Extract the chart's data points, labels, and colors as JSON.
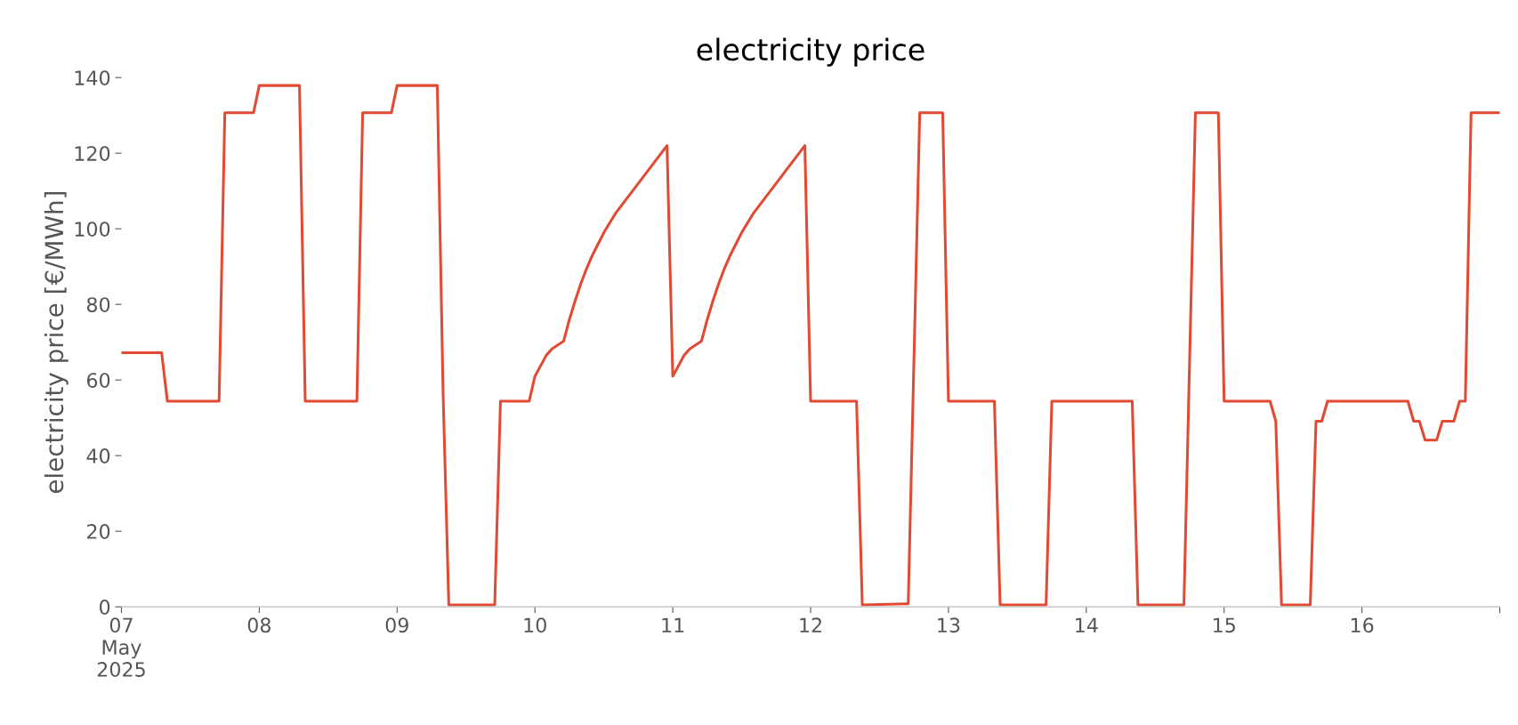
{
  "chart_data": {
    "type": "line",
    "title": "electricity price",
    "ylabel": "electricity price [€/MWh]",
    "series": [
      {
        "color": "#e24a33",
        "x": [
          "2025-05-07T00:00",
          "2025-05-07T07:00",
          "2025-05-07T08:00",
          "2025-05-07T17:00",
          "2025-05-07T18:00",
          "2025-05-07T23:00",
          "2025-05-08T00:00",
          "2025-05-08T07:00",
          "2025-05-08T08:00",
          "2025-05-08T17:00",
          "2025-05-08T18:00",
          "2025-05-08T23:00",
          "2025-05-09T00:00",
          "2025-05-09T07:00",
          "2025-05-09T08:00",
          "2025-05-09T09:00",
          "2025-05-09T17:00",
          "2025-05-09T18:00",
          "2025-05-09T23:00",
          "2025-05-10T00:00",
          "2025-05-10T02:00",
          "2025-05-10T03:00",
          "2025-05-10T05:00",
          "2025-05-10T06:00",
          "2025-05-10T07:00",
          "2025-05-10T08:00",
          "2025-05-10T09:00",
          "2025-05-10T10:00",
          "2025-05-10T11:00",
          "2025-05-10T12:00",
          "2025-05-10T13:00",
          "2025-05-10T14:00",
          "2025-05-10T15:00",
          "2025-05-10T16:00",
          "2025-05-10T17:00",
          "2025-05-10T18:00",
          "2025-05-10T19:00",
          "2025-05-10T20:00",
          "2025-05-10T21:00",
          "2025-05-10T22:00",
          "2025-05-10T23:00",
          "2025-05-11T00:00",
          "2025-05-11T02:00",
          "2025-05-11T03:00",
          "2025-05-11T05:00",
          "2025-05-11T06:00",
          "2025-05-11T07:00",
          "2025-05-11T08:00",
          "2025-05-11T09:00",
          "2025-05-11T10:00",
          "2025-05-11T11:00",
          "2025-05-11T12:00",
          "2025-05-11T13:00",
          "2025-05-11T14:00",
          "2025-05-11T15:00",
          "2025-05-11T16:00",
          "2025-05-11T17:00",
          "2025-05-11T18:00",
          "2025-05-11T19:00",
          "2025-05-11T20:00",
          "2025-05-11T21:00",
          "2025-05-11T22:00",
          "2025-05-11T23:00",
          "2025-05-12T00:00",
          "2025-05-12T08:00",
          "2025-05-12T09:00",
          "2025-05-12T17:00",
          "2025-05-12T19:00",
          "2025-05-12T23:00",
          "2025-05-13T00:00",
          "2025-05-13T08:00",
          "2025-05-13T09:00",
          "2025-05-13T17:00",
          "2025-05-13T18:00",
          "2025-05-14T08:00",
          "2025-05-14T09:00",
          "2025-05-14T17:00",
          "2025-05-14T19:00",
          "2025-05-14T23:00",
          "2025-05-15T00:00",
          "2025-05-15T08:00",
          "2025-05-15T09:00",
          "2025-05-15T10:00",
          "2025-05-15T15:00",
          "2025-05-15T16:00",
          "2025-05-15T17:00",
          "2025-05-15T18:00",
          "2025-05-16T08:00",
          "2025-05-16T09:00",
          "2025-05-16T10:00",
          "2025-05-16T11:00",
          "2025-05-16T13:00",
          "2025-05-16T14:00",
          "2025-05-16T16:00",
          "2025-05-16T17:00",
          "2025-05-16T18:00",
          "2025-05-16T19:00",
          "2025-05-17T00:00"
        ],
        "values": [
          67.2,
          67.2,
          54.4,
          54.4,
          130.7,
          130.7,
          137.9,
          137.9,
          54.4,
          54.4,
          130.7,
          130.7,
          137.9,
          137.9,
          57,
          0.5,
          0.5,
          54.4,
          54.4,
          61,
          66.6,
          68.3,
          70.3,
          76,
          81,
          85.5,
          89.5,
          93,
          96,
          99,
          101.5,
          104,
          106,
          108,
          110,
          112,
          114,
          116,
          118,
          120,
          122,
          61,
          66.6,
          68.3,
          70.3,
          76,
          81,
          85.5,
          89.5,
          93,
          96,
          99,
          101.5,
          104,
          106,
          108,
          110,
          112,
          114,
          116,
          118,
          120,
          122,
          54.4,
          54.4,
          0.5,
          0.8,
          130.7,
          130.7,
          54.4,
          54.4,
          0.5,
          0.5,
          54.4,
          54.4,
          0.5,
          0.5,
          130.7,
          130.7,
          54.4,
          54.4,
          49.1,
          0.5,
          0.5,
          49.1,
          49.1,
          54.4,
          54.4,
          49.1,
          49.1,
          44.1,
          44.1,
          49.1,
          49.1,
          54.4,
          54.4,
          130.7,
          130.7
        ]
      }
    ],
    "xticks": [
      {
        "value": "2025-05-07",
        "label": "07\nMay\n2025"
      },
      {
        "value": "2025-05-08",
        "label": "08"
      },
      {
        "value": "2025-05-09",
        "label": "09"
      },
      {
        "value": "2025-05-10",
        "label": "10"
      },
      {
        "value": "2025-05-11",
        "label": "11"
      },
      {
        "value": "2025-05-12",
        "label": "12"
      },
      {
        "value": "2025-05-13",
        "label": "13"
      },
      {
        "value": "2025-05-14",
        "label": "14"
      },
      {
        "value": "2025-05-15",
        "label": "15"
      },
      {
        "value": "2025-05-16",
        "label": "16"
      },
      {
        "value": "2025-05-17",
        "label": null
      }
    ],
    "xlim": [
      "2025-05-07",
      "2025-05-17"
    ],
    "ylim": [
      0,
      140
    ],
    "yticks": [
      0,
      20,
      40,
      60,
      80,
      100,
      120,
      140
    ],
    "grid": false,
    "legend": false
  }
}
